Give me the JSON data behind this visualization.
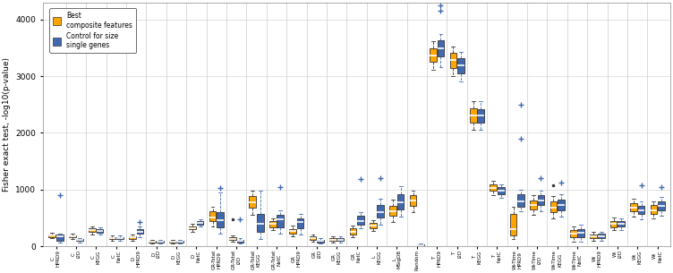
{
  "ylabel": "Fisher exact test, -log10(p-value)",
  "ylim": [
    0,
    4300
  ],
  "yticks": [
    0,
    1000,
    2000,
    3000,
    4000
  ],
  "orange_color": "#FFA500",
  "blue_color": "#4169B0",
  "background_color": "#FFFFFF",
  "legend_orange": "Best\ncomposite features",
  "legend_blue": "Control for size\nsingle genes",
  "groups": [
    {
      "label": "C\nHPRD9",
      "o_wl": 140,
      "o_q1": 160,
      "o_med": 185,
      "o_q3": 210,
      "o_wh": 235,
      "o_out": [],
      "b_wl": 60,
      "b_q1": 100,
      "b_med": 170,
      "b_q3": 200,
      "b_wh": 220,
      "b_out": [
        900
      ]
    },
    {
      "label": "C\ni2D",
      "o_wl": 130,
      "o_q1": 155,
      "o_med": 175,
      "o_q3": 200,
      "o_wh": 220,
      "o_out": [],
      "b_wl": 70,
      "b_q1": 90,
      "b_med": 110,
      "b_q3": 130,
      "b_wh": 150,
      "b_out": []
    },
    {
      "label": "C\nKEGG",
      "o_wl": 210,
      "o_q1": 250,
      "o_med": 280,
      "o_q3": 310,
      "o_wh": 350,
      "o_out": [],
      "b_wl": 200,
      "b_q1": 240,
      "b_med": 270,
      "b_q3": 300,
      "b_wh": 340,
      "b_out": []
    },
    {
      "label": "C\nNetC",
      "o_wl": 100,
      "o_q1": 120,
      "o_med": 140,
      "o_q3": 165,
      "o_wh": 185,
      "o_out": [],
      "b_wl": 100,
      "b_q1": 120,
      "b_med": 140,
      "b_q3": 165,
      "b_wh": 185,
      "b_out": []
    },
    {
      "label": "D\nHPRD9",
      "o_wl": 100,
      "o_q1": 130,
      "o_med": 155,
      "o_q3": 180,
      "o_wh": 210,
      "o_out": [],
      "b_wl": 150,
      "b_q1": 210,
      "b_med": 255,
      "b_q3": 300,
      "b_wh": 350,
      "b_out": [
        430
      ]
    },
    {
      "label": "D\ni2D",
      "o_wl": 55,
      "o_q1": 70,
      "o_med": 85,
      "o_q3": 100,
      "o_wh": 115,
      "o_out": [],
      "b_wl": 55,
      "b_q1": 70,
      "b_med": 85,
      "b_q3": 100,
      "b_wh": 115,
      "b_out": []
    },
    {
      "label": "D\nKEGG",
      "o_wl": 55,
      "o_q1": 70,
      "o_med": 85,
      "o_q3": 100,
      "o_wh": 115,
      "o_out": [],
      "b_wl": 55,
      "b_q1": 70,
      "b_med": 85,
      "b_q3": 100,
      "b_wh": 115,
      "b_out": []
    },
    {
      "label": "D\nNetC",
      "o_wl": 255,
      "o_q1": 295,
      "o_med": 320,
      "o_q3": 350,
      "o_wh": 390,
      "o_out": [],
      "b_wl": 340,
      "b_q1": 380,
      "b_med": 410,
      "b_q3": 440,
      "b_wh": 480,
      "b_out": []
    },
    {
      "label": "GR-Tstat\nHPRD9",
      "o_wl": 350,
      "o_q1": 440,
      "o_med": 510,
      "o_q3": 610,
      "o_wh": 700,
      "o_out": [],
      "b_wl": 200,
      "b_q1": 320,
      "b_med": 450,
      "b_q3": 600,
      "b_wh": 750,
      "b_out": [
        950,
        1020
      ]
    },
    {
      "label": "GR-Tstat\ni2D",
      "o_wl": 80,
      "o_q1": 105,
      "o_med": 130,
      "o_q3": 160,
      "o_wh": 185,
      "o_out": [
        480
      ],
      "b_wl": 50,
      "b_q1": 70,
      "b_med": 90,
      "b_q3": 115,
      "b_wh": 140,
      "b_out": [
        480
      ]
    },
    {
      "label": "GR-Tstat\nKEGG",
      "o_wl": 550,
      "o_q1": 680,
      "o_med": 780,
      "o_q3": 890,
      "o_wh": 980,
      "o_out": [],
      "b_wl": 130,
      "b_q1": 250,
      "b_med": 380,
      "b_q3": 560,
      "b_wh": 700,
      "b_out": [
        980
      ]
    },
    {
      "label": "GR-Tstat\nNetC",
      "o_wl": 280,
      "o_q1": 340,
      "o_med": 390,
      "o_q3": 440,
      "o_wh": 490,
      "o_out": [],
      "b_wl": 200,
      "b_q1": 330,
      "b_med": 480,
      "b_q3": 560,
      "b_wh": 640,
      "b_out": [
        1050
      ]
    },
    {
      "label": "GR\nHPRD9",
      "o_wl": 180,
      "o_q1": 220,
      "o_med": 265,
      "o_q3": 310,
      "o_wh": 360,
      "o_out": [],
      "b_wl": 200,
      "b_q1": 310,
      "b_med": 430,
      "b_q3": 500,
      "b_wh": 570,
      "b_out": []
    },
    {
      "label": "GR\ni2D",
      "o_wl": 80,
      "o_q1": 110,
      "o_med": 140,
      "o_q3": 175,
      "o_wh": 210,
      "o_out": [],
      "b_wl": 50,
      "b_q1": 70,
      "b_med": 90,
      "b_q3": 115,
      "b_wh": 140,
      "b_out": []
    },
    {
      "label": "GR\nKEGG",
      "o_wl": 70,
      "o_q1": 90,
      "o_med": 115,
      "o_q3": 145,
      "o_wh": 175,
      "o_out": [],
      "b_wl": 70,
      "b_q1": 90,
      "b_med": 115,
      "b_q3": 145,
      "b_wh": 175,
      "b_out": []
    },
    {
      "label": "GR\nNetC",
      "o_wl": 160,
      "o_q1": 210,
      "o_med": 260,
      "o_q3": 310,
      "o_wh": 360,
      "o_out": [],
      "b_wl": 300,
      "b_q1": 380,
      "b_med": 450,
      "b_q3": 530,
      "b_wh": 610,
      "b_out": [
        1180
      ]
    },
    {
      "label": "L\nKEGG",
      "o_wl": 270,
      "o_q1": 320,
      "o_med": 365,
      "o_q3": 410,
      "o_wh": 460,
      "o_out": [],
      "b_wl": 380,
      "b_q1": 500,
      "b_med": 600,
      "b_q3": 720,
      "b_wh": 840,
      "b_out": [
        1200
      ]
    },
    {
      "label": "L\nMSigDB",
      "o_wl": 420,
      "o_q1": 530,
      "o_med": 620,
      "o_q3": 720,
      "o_wh": 820,
      "o_out": [],
      "b_wl": 520,
      "b_q1": 650,
      "b_med": 770,
      "b_q3": 920,
      "b_wh": 1060,
      "b_out": []
    },
    {
      "label": "Random",
      "o_wl": 600,
      "o_q1": 720,
      "o_med": 810,
      "o_q3": 900,
      "o_wh": 990,
      "o_out": [],
      "b_wl": 0,
      "b_q1": 10,
      "b_med": 20,
      "b_q3": 35,
      "b_wh": 50,
      "b_out": []
    },
    {
      "label": "T\nHPRD9",
      "o_wl": 3100,
      "o_q1": 3250,
      "o_med": 3370,
      "o_q3": 3500,
      "o_wh": 3620,
      "o_out": [],
      "b_wl": 3150,
      "b_q1": 3330,
      "b_med": 3480,
      "b_q3": 3620,
      "b_wh": 3750,
      "b_out": [
        4150,
        4250
      ]
    },
    {
      "label": "T\ni2D",
      "o_wl": 3000,
      "o_q1": 3150,
      "o_med": 3280,
      "o_q3": 3420,
      "o_wh": 3550,
      "o_out": [],
      "b_wl": 2900,
      "b_q1": 3050,
      "b_med": 3180,
      "b_q3": 3320,
      "b_wh": 3440,
      "b_out": []
    },
    {
      "label": "T\nKEGG",
      "o_wl": 2050,
      "o_q1": 2180,
      "o_med": 2300,
      "o_q3": 2430,
      "o_wh": 2560,
      "o_out": [],
      "b_wl": 2050,
      "b_q1": 2180,
      "b_med": 2300,
      "b_q3": 2430,
      "b_wh": 2560,
      "b_out": []
    },
    {
      "label": "T\nNetC",
      "o_wl": 900,
      "o_q1": 970,
      "o_med": 1030,
      "o_q3": 1090,
      "o_wh": 1155,
      "o_out": [],
      "b_wl": 850,
      "b_q1": 920,
      "b_med": 975,
      "b_q3": 1040,
      "b_wh": 1100,
      "b_out": []
    },
    {
      "label": "Wi-Time\nHPRD9",
      "o_wl": 120,
      "o_q1": 190,
      "o_med": 300,
      "o_q3": 580,
      "o_wh": 700,
      "o_out": [],
      "b_wl": 600,
      "b_q1": 700,
      "b_med": 790,
      "b_q3": 900,
      "b_wh": 1010,
      "b_out": [
        1900,
        2500
      ]
    },
    {
      "label": "Wi-Time\ni2D",
      "o_wl": 550,
      "o_q1": 650,
      "o_med": 730,
      "o_q3": 810,
      "o_wh": 900,
      "o_out": [],
      "b_wl": 620,
      "b_q1": 720,
      "b_med": 810,
      "b_q3": 900,
      "b_wh": 990,
      "b_out": [
        1200
      ]
    },
    {
      "label": "Wi-Time\nKEGG",
      "o_wl": 480,
      "o_q1": 590,
      "o_med": 680,
      "o_q3": 780,
      "o_wh": 880,
      "o_out": [
        1080
      ],
      "b_wl": 520,
      "b_q1": 630,
      "b_med": 720,
      "b_q3": 820,
      "b_wh": 920,
      "b_out": [
        1120
      ]
    },
    {
      "label": "Wi-Time\nNetC",
      "o_wl": 80,
      "o_q1": 150,
      "o_med": 220,
      "o_q3": 290,
      "o_wh": 360,
      "o_out": [],
      "b_wl": 80,
      "b_q1": 160,
      "b_med": 230,
      "b_q3": 300,
      "b_wh": 375,
      "b_out": []
    },
    {
      "label": "Wi\nHPRD9",
      "o_wl": 100,
      "o_q1": 140,
      "o_med": 175,
      "o_q3": 215,
      "o_wh": 255,
      "o_out": [],
      "b_wl": 100,
      "b_q1": 140,
      "b_med": 175,
      "b_q3": 215,
      "b_wh": 255,
      "b_out": []
    },
    {
      "label": "Wi\ni2D",
      "o_wl": 280,
      "o_q1": 340,
      "o_med": 390,
      "o_q3": 445,
      "o_wh": 500,
      "o_out": [],
      "b_wl": 280,
      "b_q1": 340,
      "b_med": 390,
      "b_q3": 445,
      "b_wh": 500,
      "b_out": []
    },
    {
      "label": "Wi\nKEGG",
      "o_wl": 520,
      "o_q1": 610,
      "o_med": 680,
      "o_q3": 760,
      "o_wh": 840,
      "o_out": [],
      "b_wl": 480,
      "b_q1": 565,
      "b_med": 635,
      "b_q3": 710,
      "b_wh": 790,
      "b_out": [
        1080
      ]
    },
    {
      "label": "Wi\nNetC",
      "o_wl": 490,
      "o_q1": 570,
      "o_med": 645,
      "o_q3": 720,
      "o_wh": 800,
      "o_out": [],
      "b_wl": 540,
      "b_q1": 630,
      "b_med": 710,
      "b_q3": 790,
      "b_wh": 870,
      "b_out": [
        1050
      ]
    }
  ]
}
